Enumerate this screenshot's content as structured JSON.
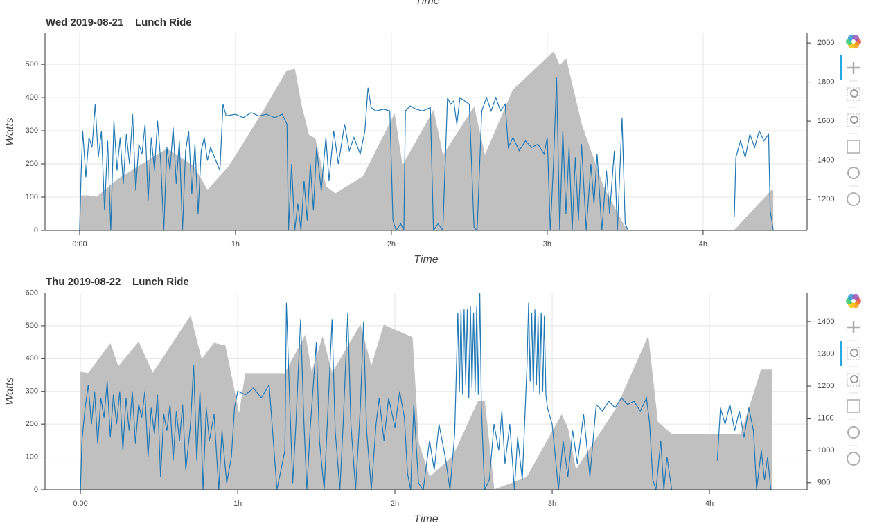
{
  "previous_x_label": "Time",
  "chart_data": [
    {
      "type": "line",
      "title": "Wed 2019-08-21    Lunch Ride",
      "x_label": "Time",
      "y_label": "Watts",
      "xlim": [
        -0.222,
        4.667
      ],
      "xticks": [
        {
          "value": 0,
          "label": "0:00"
        },
        {
          "value": 1,
          "label": "1h"
        },
        {
          "value": 2,
          "label": "2h"
        },
        {
          "value": 3,
          "label": "3h"
        },
        {
          "value": 4,
          "label": "4h"
        }
      ],
      "ylim": [
        0,
        594
      ],
      "yticks": [
        0,
        100,
        200,
        300,
        400,
        500
      ],
      "y2lim": [
        1041,
        2050
      ],
      "y2ticks": [
        1200,
        1400,
        1600,
        1800,
        2000
      ],
      "grid": true,
      "series": [
        {
          "type": "area",
          "axis": "y2",
          "color": "#c0c0c0",
          "x": [
            0,
            0.058,
            0.11,
            0.24,
            0.56,
            0.73,
            0.82,
            0.96,
            1.18,
            1.33,
            1.38,
            1.42,
            1.47,
            1.51,
            1.58,
            1.64,
            1.82,
            2.02,
            2.07,
            2.27,
            2.33,
            2.53,
            2.6,
            2.78,
            3.04,
            3.08,
            3.12,
            3.22,
            3.36,
            3.49,
            3.52,
            4.2,
            4.44,
            4.45
          ],
          "values": [
            1218,
            1218,
            1211,
            1299,
            1458,
            1370,
            1246,
            1370,
            1653,
            1858,
            1865,
            1688,
            1529,
            1512,
            1264,
            1228,
            1317,
            1635,
            1370,
            1653,
            1423,
            1671,
            1423,
            1759,
            1954,
            1883,
            1918,
            1582,
            1264,
            1069,
            1041,
            1041,
            1246,
            1246
          ]
        },
        {
          "type": "line",
          "color": "#1f77b4",
          "x": [
            0,
            0.01,
            0.02,
            0.04,
            0.06,
            0.08,
            0.1,
            0.12,
            0.14,
            0.16,
            0.18,
            0.2,
            0.22,
            0.24,
            0.26,
            0.28,
            0.3,
            0.32,
            0.34,
            0.36,
            0.38,
            0.4,
            0.42,
            0.44,
            0.46,
            0.48,
            0.5,
            0.52,
            0.54,
            0.56,
            0.58,
            0.6,
            0.62,
            0.64,
            0.66,
            0.68,
            0.7,
            0.72,
            0.74,
            0.76,
            0.78,
            0.8,
            0.82,
            0.84,
            0.9,
            0.92,
            0.94,
            1.0,
            1.05,
            1.1,
            1.15,
            1.2,
            1.25,
            1.3,
            1.33,
            1.34,
            1.36,
            1.38,
            1.4,
            1.42,
            1.44,
            1.46,
            1.48,
            1.5,
            1.52,
            1.55,
            1.58,
            1.6,
            1.63,
            1.66,
            1.7,
            1.73,
            1.76,
            1.8,
            1.83,
            1.85,
            1.87,
            1.9,
            1.95,
            1.99,
            2.01,
            2.03,
            2.06,
            2.08,
            2.09,
            2.12,
            2.16,
            2.2,
            2.25,
            2.27,
            2.3,
            2.33,
            2.36,
            2.38,
            2.4,
            2.42,
            2.44,
            2.47,
            2.5,
            2.53,
            2.55,
            2.58,
            2.61,
            2.64,
            2.67,
            2.7,
            2.73,
            2.75,
            2.78,
            2.82,
            2.86,
            2.9,
            2.94,
            2.98,
            3.0,
            3.02,
            3.04,
            3.06,
            3.08,
            3.1,
            3.12,
            3.14,
            3.16,
            3.18,
            3.2,
            3.22,
            3.25,
            3.28,
            3.3,
            3.32,
            3.35,
            3.38,
            3.4,
            3.43,
            3.45,
            3.48,
            3.5,
            3.52,
            3.6,
            4.2,
            4.21,
            4.24,
            4.27,
            4.3,
            4.33,
            4.36,
            4.39,
            4.42,
            4.43,
            4.45
          ],
          "values": [
            0,
            180,
            300,
            160,
            280,
            250,
            380,
            220,
            300,
            60,
            270,
            0,
            330,
            180,
            280,
            140,
            290,
            200,
            350,
            120,
            260,
            230,
            320,
            90,
            280,
            180,
            330,
            210,
            0,
            250,
            180,
            310,
            140,
            270,
            0,
            240,
            300,
            110,
            260,
            50,
            240,
            280,
            210,
            250,
            180,
            380,
            345,
            350,
            340,
            355,
            345,
            350,
            340,
            350,
            320,
            0,
            200,
            0,
            80,
            0,
            150,
            30,
            200,
            60,
            250,
            120,
            280,
            150,
            300,
            200,
            320,
            240,
            280,
            230,
            300,
            430,
            370,
            360,
            365,
            360,
            30,
            0,
            20,
            0,
            360,
            375,
            365,
            360,
            370,
            0,
            20,
            0,
            400,
            380,
            390,
            320,
            400,
            390,
            380,
            10,
            0,
            360,
            400,
            360,
            400,
            360,
            380,
            250,
            280,
            240,
            270,
            250,
            260,
            230,
            280,
            0,
            200,
            460,
            0,
            300,
            50,
            250,
            0,
            220,
            30,
            260,
            0,
            200,
            80,
            230,
            0,
            180,
            50,
            240,
            0,
            340,
            20,
            0,
            null,
            40,
            220,
            270,
            220,
            290,
            250,
            300,
            270,
            290,
            60,
            0
          ]
        }
      ]
    },
    {
      "type": "line",
      "title": "Thu 2019-08-22    Lunch Ride",
      "x_label": "Time",
      "y_label": "Watts",
      "xlim": [
        -0.225,
        4.621
      ],
      "xticks": [
        {
          "value": 0,
          "label": "0:00"
        },
        {
          "value": 1,
          "label": "1h"
        },
        {
          "value": 2,
          "label": "2h"
        },
        {
          "value": 3,
          "label": "3h"
        },
        {
          "value": 4,
          "label": "4h"
        }
      ],
      "ylim": [
        0,
        601
      ],
      "yticks": [
        0,
        100,
        200,
        300,
        400,
        500,
        600
      ],
      "y2lim": [
        878,
        1490
      ],
      "y2ticks": [
        900,
        1000,
        1100,
        1200,
        1300,
        1400
      ],
      "grid": true,
      "series": [
        {
          "type": "area",
          "axis": "y2",
          "color": "#c0c0c0",
          "x": [
            0,
            0.05,
            0.19,
            0.24,
            0.37,
            0.46,
            0.7,
            0.77,
            0.85,
            0.92,
            1.01,
            1.05,
            1.3,
            1.43,
            1.47,
            1.54,
            1.6,
            1.78,
            1.85,
            1.93,
            2.11,
            2.15,
            2.22,
            2.37,
            2.53,
            2.57,
            2.63,
            2.73,
            2.84,
            3.06,
            3.1,
            3.15,
            3.41,
            3.61,
            3.67,
            3.76,
            4.2,
            4.33,
            4.4
          ],
          "values": [
            1243,
            1239,
            1331,
            1260,
            1336,
            1239,
            1417,
            1282,
            1333,
            1325,
            1110,
            1239,
            1239,
            1357,
            1239,
            1351,
            1239,
            1389,
            1260,
            1389,
            1351,
            1024,
            917,
            982,
            1153,
            1153,
            878,
            896,
            917,
            1110,
            1067,
            939,
            1132,
            1353,
            1089,
            1050,
            1050,
            1250,
            1250
          ]
        },
        {
          "type": "line",
          "color": "#1f77b4",
          "x": [
            0,
            0.01,
            0.03,
            0.05,
            0.07,
            0.09,
            0.11,
            0.13,
            0.15,
            0.17,
            0.19,
            0.21,
            0.23,
            0.25,
            0.27,
            0.29,
            0.31,
            0.33,
            0.35,
            0.37,
            0.39,
            0.41,
            0.43,
            0.45,
            0.47,
            0.49,
            0.51,
            0.53,
            0.55,
            0.57,
            0.59,
            0.61,
            0.63,
            0.65,
            0.67,
            0.7,
            0.72,
            0.74,
            0.76,
            0.78,
            0.8,
            0.82,
            0.85,
            0.88,
            0.9,
            0.93,
            0.96,
            0.98,
            1.0,
            1.05,
            1.1,
            1.15,
            1.2,
            1.25,
            1.3,
            1.31,
            1.33,
            1.35,
            1.37,
            1.4,
            1.42,
            1.44,
            1.46,
            1.5,
            1.52,
            1.55,
            1.57,
            1.6,
            1.62,
            1.65,
            1.67,
            1.7,
            1.72,
            1.75,
            1.78,
            1.8,
            1.82,
            1.85,
            1.88,
            1.9,
            1.93,
            1.96,
            2.0,
            2.03,
            2.06,
            2.08,
            2.1,
            2.12,
            2.15,
            2.18,
            2.22,
            2.25,
            2.28,
            2.32,
            2.35,
            2.38,
            2.4,
            2.41,
            2.42,
            2.43,
            2.44,
            2.45,
            2.46,
            2.47,
            2.48,
            2.49,
            2.5,
            2.51,
            2.52,
            2.53,
            2.54,
            2.55,
            2.57,
            2.6,
            2.63,
            2.66,
            2.68,
            2.7,
            2.73,
            2.76,
            2.78,
            2.81,
            2.84,
            2.85,
            2.86,
            2.87,
            2.88,
            2.89,
            2.9,
            2.91,
            2.92,
            2.93,
            2.94,
            2.95,
            2.96,
            2.97,
            3.0,
            3.02,
            3.04,
            3.07,
            3.1,
            3.13,
            3.16,
            3.2,
            3.24,
            3.28,
            3.32,
            3.36,
            3.4,
            3.44,
            3.48,
            3.52,
            3.56,
            3.6,
            3.62,
            3.64,
            3.66,
            3.69,
            3.71,
            3.73,
            3.76,
            3.9,
            4.05,
            4.07,
            4.1,
            4.13,
            4.16,
            4.19,
            4.22,
            4.25,
            4.28,
            4.3,
            4.33,
            4.35,
            4.37,
            4.39
          ],
          "values": [
            0,
            150,
            250,
            320,
            200,
            300,
            140,
            280,
            220,
            330,
            160,
            290,
            200,
            300,
            120,
            280,
            180,
            300,
            140,
            260,
            220,
            300,
            100,
            250,
            170,
            290,
            40,
            230,
            180,
            260,
            90,
            240,
            150,
            260,
            60,
            200,
            380,
            90,
            300,
            0,
            250,
            150,
            230,
            0,
            180,
            20,
            100,
            250,
            300,
            290,
            310,
            280,
            320,
            0,
            120,
            570,
            280,
            20,
            200,
            520,
            220,
            0,
            180,
            450,
            150,
            0,
            200,
            520,
            180,
            0,
            190,
            540,
            200,
            0,
            250,
            510,
            180,
            0,
            200,
            280,
            150,
            280,
            190,
            300,
            220,
            50,
            0,
            260,
            20,
            0,
            150,
            60,
            200,
            100,
            0,
            170,
            540,
            300,
            550,
            290,
            550,
            320,
            550,
            280,
            560,
            310,
            540,
            300,
            560,
            290,
            600,
            250,
            0,
            30,
            200,
            120,
            240,
            80,
            200,
            0,
            160,
            30,
            380,
            570,
            330,
            540,
            300,
            550,
            320,
            530,
            290,
            540,
            300,
            530,
            290,
            250,
            200,
            100,
            0,
            150,
            40,
            180,
            80,
            230,
            40,
            260,
            240,
            270,
            250,
            280,
            260,
            270,
            240,
            280,
            200,
            30,
            0,
            150,
            0,
            100,
            0,
            null,
            90,
            250,
            200,
            260,
            180,
            240,
            160,
            250,
            180,
            0,
            120,
            30,
            100,
            0
          ]
        }
      ]
    }
  ]
}
